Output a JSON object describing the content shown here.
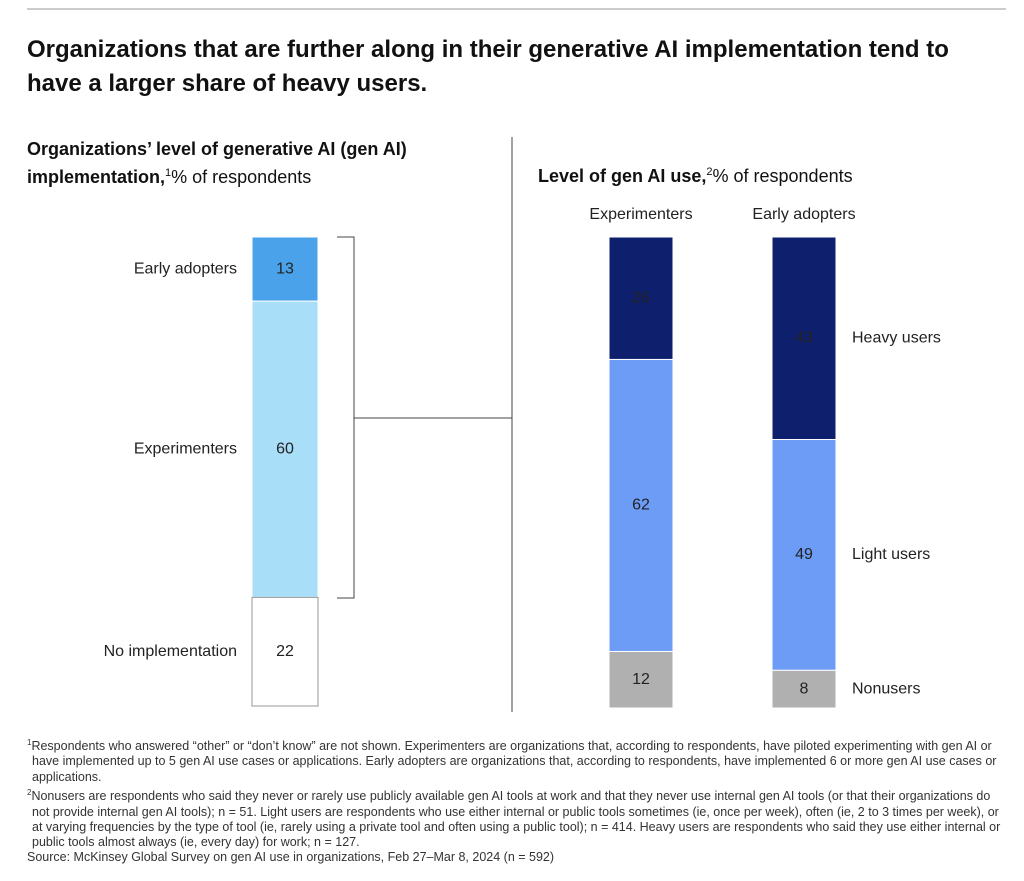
{
  "title": "Organizations that are further along in their generative AI implementation tend to have a larger share of heavy users.",
  "chart_data": [
    {
      "type": "stacked-bar",
      "title": "Organizations’ level of generative AI (gen AI) implementation,",
      "title_note": "1",
      "unit": "% of respondents",
      "categories": [
        "Early adopters",
        "Experimenters",
        "No implementation"
      ],
      "values": [
        13,
        60,
        22
      ],
      "colors": [
        "#4aa3ea",
        "#a9def9",
        "#ffffff"
      ]
    },
    {
      "type": "stacked-bar",
      "title": "Level of gen AI use,",
      "title_note": "2",
      "unit": "% of respondents",
      "categories": [
        "Experimenters",
        "Early adopters"
      ],
      "series": [
        {
          "name": "Heavy users",
          "color": "#0e1f6e",
          "values": [
            26,
            43
          ]
        },
        {
          "name": "Light users",
          "color": "#6c9cf5",
          "values": [
            62,
            49
          ]
        },
        {
          "name": "Nonusers",
          "color": "#b0b0b0",
          "values": [
            12,
            8
          ]
        }
      ]
    }
  ],
  "footnotes": [
    {
      "marker": "1",
      "text": "Respondents who answered “other” or “don’t know” are not shown. Experimenters are organizations that, according to respondents, have piloted experimenting with gen AI or have implemented up to 5 gen AI use cases or applications. Early adopters are organizations that, according to respondents, have implemented 6 or more gen AI use cases or applications."
    },
    {
      "marker": "2",
      "text": "Nonusers are respondents who said they never or rarely use publicly available gen AI tools at work and that they never use internal gen AI tools (or that their organizations do not provide internal gen AI tools); n = 51. Light users are respondents who use either internal or public tools sometimes (ie, once per week), often (ie, 2 to 3 times per week), or at varying frequencies by the type of tool (ie, rarely using a private tool and often using a public tool); n = 414. Heavy users are respondents who said they use either internal or public tools almost always (ie, every day) for work; n = 127."
    }
  ],
  "source": "Source: McKinsey Global Survey on gen AI use in organizations, Feb 27–Mar 8, 2024 (n = 592)"
}
